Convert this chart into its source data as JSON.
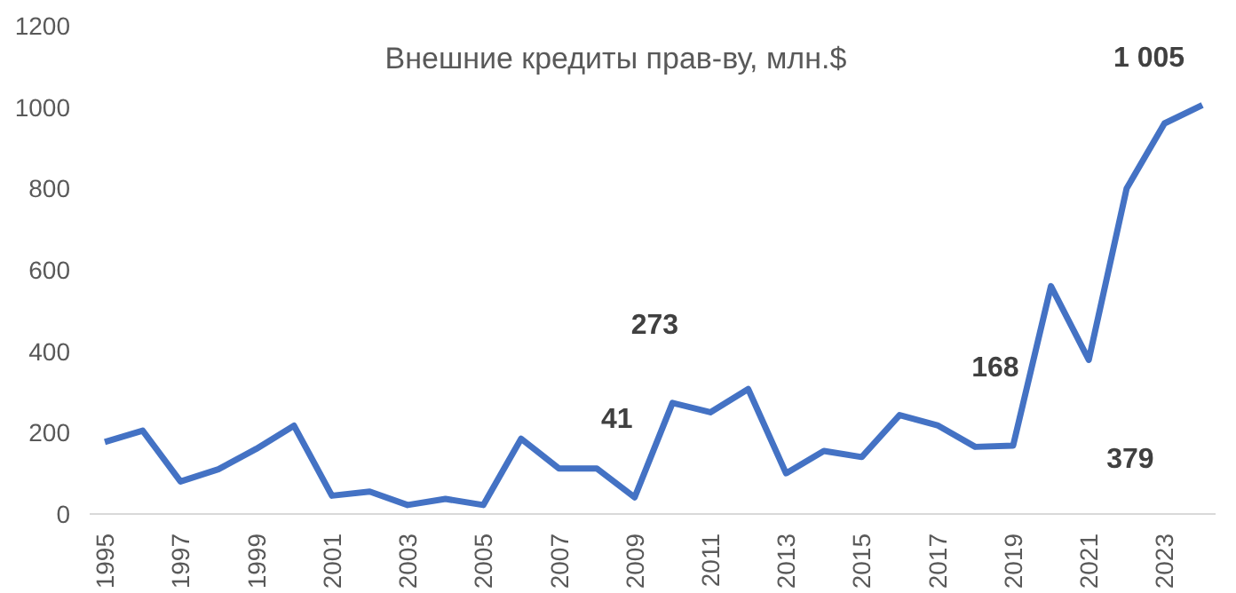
{
  "chart_data": {
    "type": "line",
    "title": "Внешние кредиты прав-ву, млн.$",
    "categories": [
      "1995",
      null,
      "1997",
      null,
      "1999",
      null,
      "2001",
      null,
      "2003",
      null,
      "2005",
      null,
      "2007",
      null,
      "2009",
      null,
      "2011",
      null,
      "2013",
      null,
      "2015",
      null,
      "2017",
      null,
      "2019",
      null,
      "2021",
      null,
      "2023",
      null
    ],
    "series": [
      {
        "color": "#4472c4",
        "values": [
          177,
          205,
          80,
          110,
          160,
          217,
          45,
          55,
          22,
          37,
          22,
          185,
          112,
          112,
          41,
          273,
          250,
          307,
          100,
          155,
          140,
          243,
          218,
          165,
          168,
          560,
          379,
          800,
          960,
          1005
        ],
        "value_labels": [
          null,
          null,
          null,
          null,
          null,
          null,
          null,
          null,
          null,
          null,
          null,
          null,
          null,
          null,
          "41",
          "273",
          null,
          null,
          null,
          null,
          null,
          null,
          null,
          null,
          "168",
          null,
          "379",
          null,
          null,
          "1 005"
        ]
      }
    ],
    "ylim": [
      0,
      1200
    ],
    "yticks": [
      0,
      200,
      400,
      600,
      800,
      1000,
      1200
    ],
    "grid": false,
    "marker": "none",
    "line_style": "solid"
  }
}
